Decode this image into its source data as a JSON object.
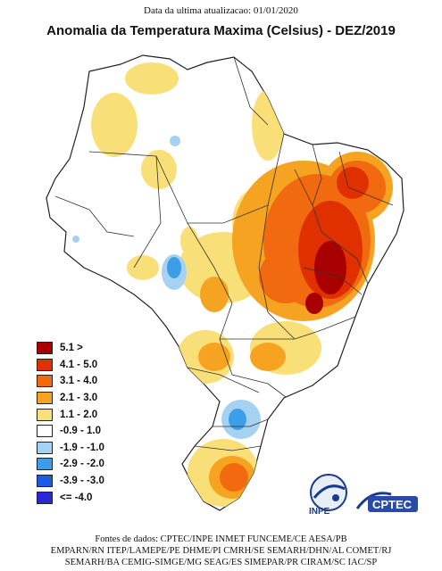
{
  "header": {
    "update_text": "Data da ultima atualizacao: 01/01/2020",
    "title": "Anomalia da Temperatura Maxima (Celsius) - DEZ/2019"
  },
  "legend": {
    "items": [
      {
        "label": "5.1 >",
        "color": "#a80000"
      },
      {
        "label": "4.1 - 5.0",
        "color": "#e03000"
      },
      {
        "label": "3.1 - 4.0",
        "color": "#f26a10"
      },
      {
        "label": "2.1 - 3.0",
        "color": "#f5a320"
      },
      {
        "label": "1.1 - 2.0",
        "color": "#f8df78"
      },
      {
        "label": "-0.9 - 1.0",
        "color": "#ffffff"
      },
      {
        "label": "-1.9 - -1.0",
        "color": "#a6d2f2"
      },
      {
        "label": "-2.9 - -2.0",
        "color": "#3c9ee6"
      },
      {
        "label": "-3.9 - -3.0",
        "color": "#1a5ce0"
      },
      {
        "label": "<= -4.0",
        "color": "#2a28d0"
      }
    ]
  },
  "logos": {
    "inpe": "INPE",
    "cptec": "CPTEC"
  },
  "sources": {
    "lines": [
      "Fontes de dados: CPTEC/INPE INMET FUNCEME/CE AESA/PB",
      "EMPARN/RN ITEP/LAMEPE/PE DHME/PI CMRH/SE SEMARH/DHN/AL COMET/RJ",
      "SEMARH/BA CEMIG-SIMGE/MG SEAG/ES SIMEPAR/PR CIRAM/SC IAC/SP"
    ]
  }
}
